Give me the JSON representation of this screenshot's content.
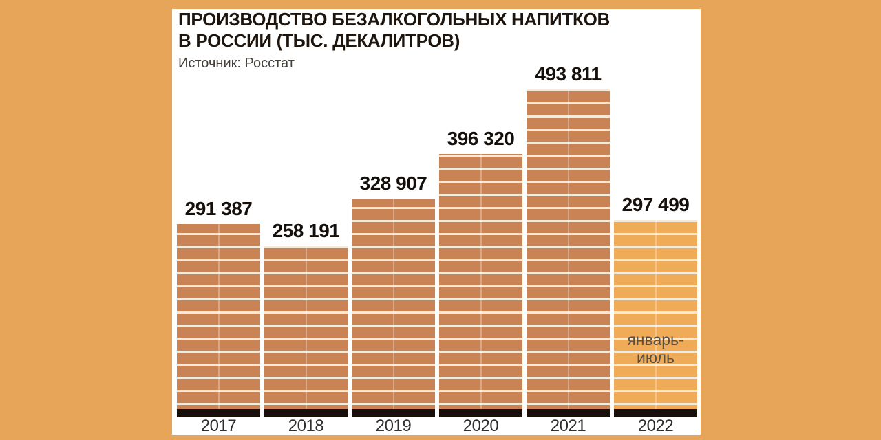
{
  "title": {
    "line1": "ПРОИЗВОДСТВО БЕЗАЛКОГОЛЬНЫХ НАПИТКОВ",
    "line2": "В РОССИИ (ТЫС. ДЕКАЛИТРОВ)"
  },
  "source": "Источник: Росстат",
  "colors": {
    "background": "#e7a559",
    "panel": "#ffffff",
    "bar": "#c98354",
    "bar_2022": "#f0ab58",
    "stripe": "#f5ead7",
    "base": "#17100a"
  },
  "chart_data": {
    "type": "bar",
    "title": "ПРОИЗВОДСТВО БЕЗАЛКОГОЛЬНЫХ НАПИТКОВ В РОССИИ (ТЫС. ДЕКАЛИТРОВ)",
    "source": "Источник: Росстат",
    "categories": [
      "2017",
      "2018",
      "2019",
      "2020",
      "2021",
      "2022"
    ],
    "values": [
      291387,
      258191,
      328907,
      396320,
      493811,
      297499
    ],
    "value_labels": [
      "291 387",
      "258 191",
      "328 907",
      "396 320",
      "493 811",
      "297 499"
    ],
    "bar_colors": [
      "#c98354",
      "#c98354",
      "#c98354",
      "#c98354",
      "#c98354",
      "#f0ab58"
    ],
    "stripe_color": "#f5ead7",
    "base_color": "#17100a",
    "ylim": [
      0,
      493811
    ],
    "grid": false,
    "legend": false,
    "annotation": {
      "bar": "2022",
      "line1": "январь-",
      "line2": "июль"
    }
  }
}
